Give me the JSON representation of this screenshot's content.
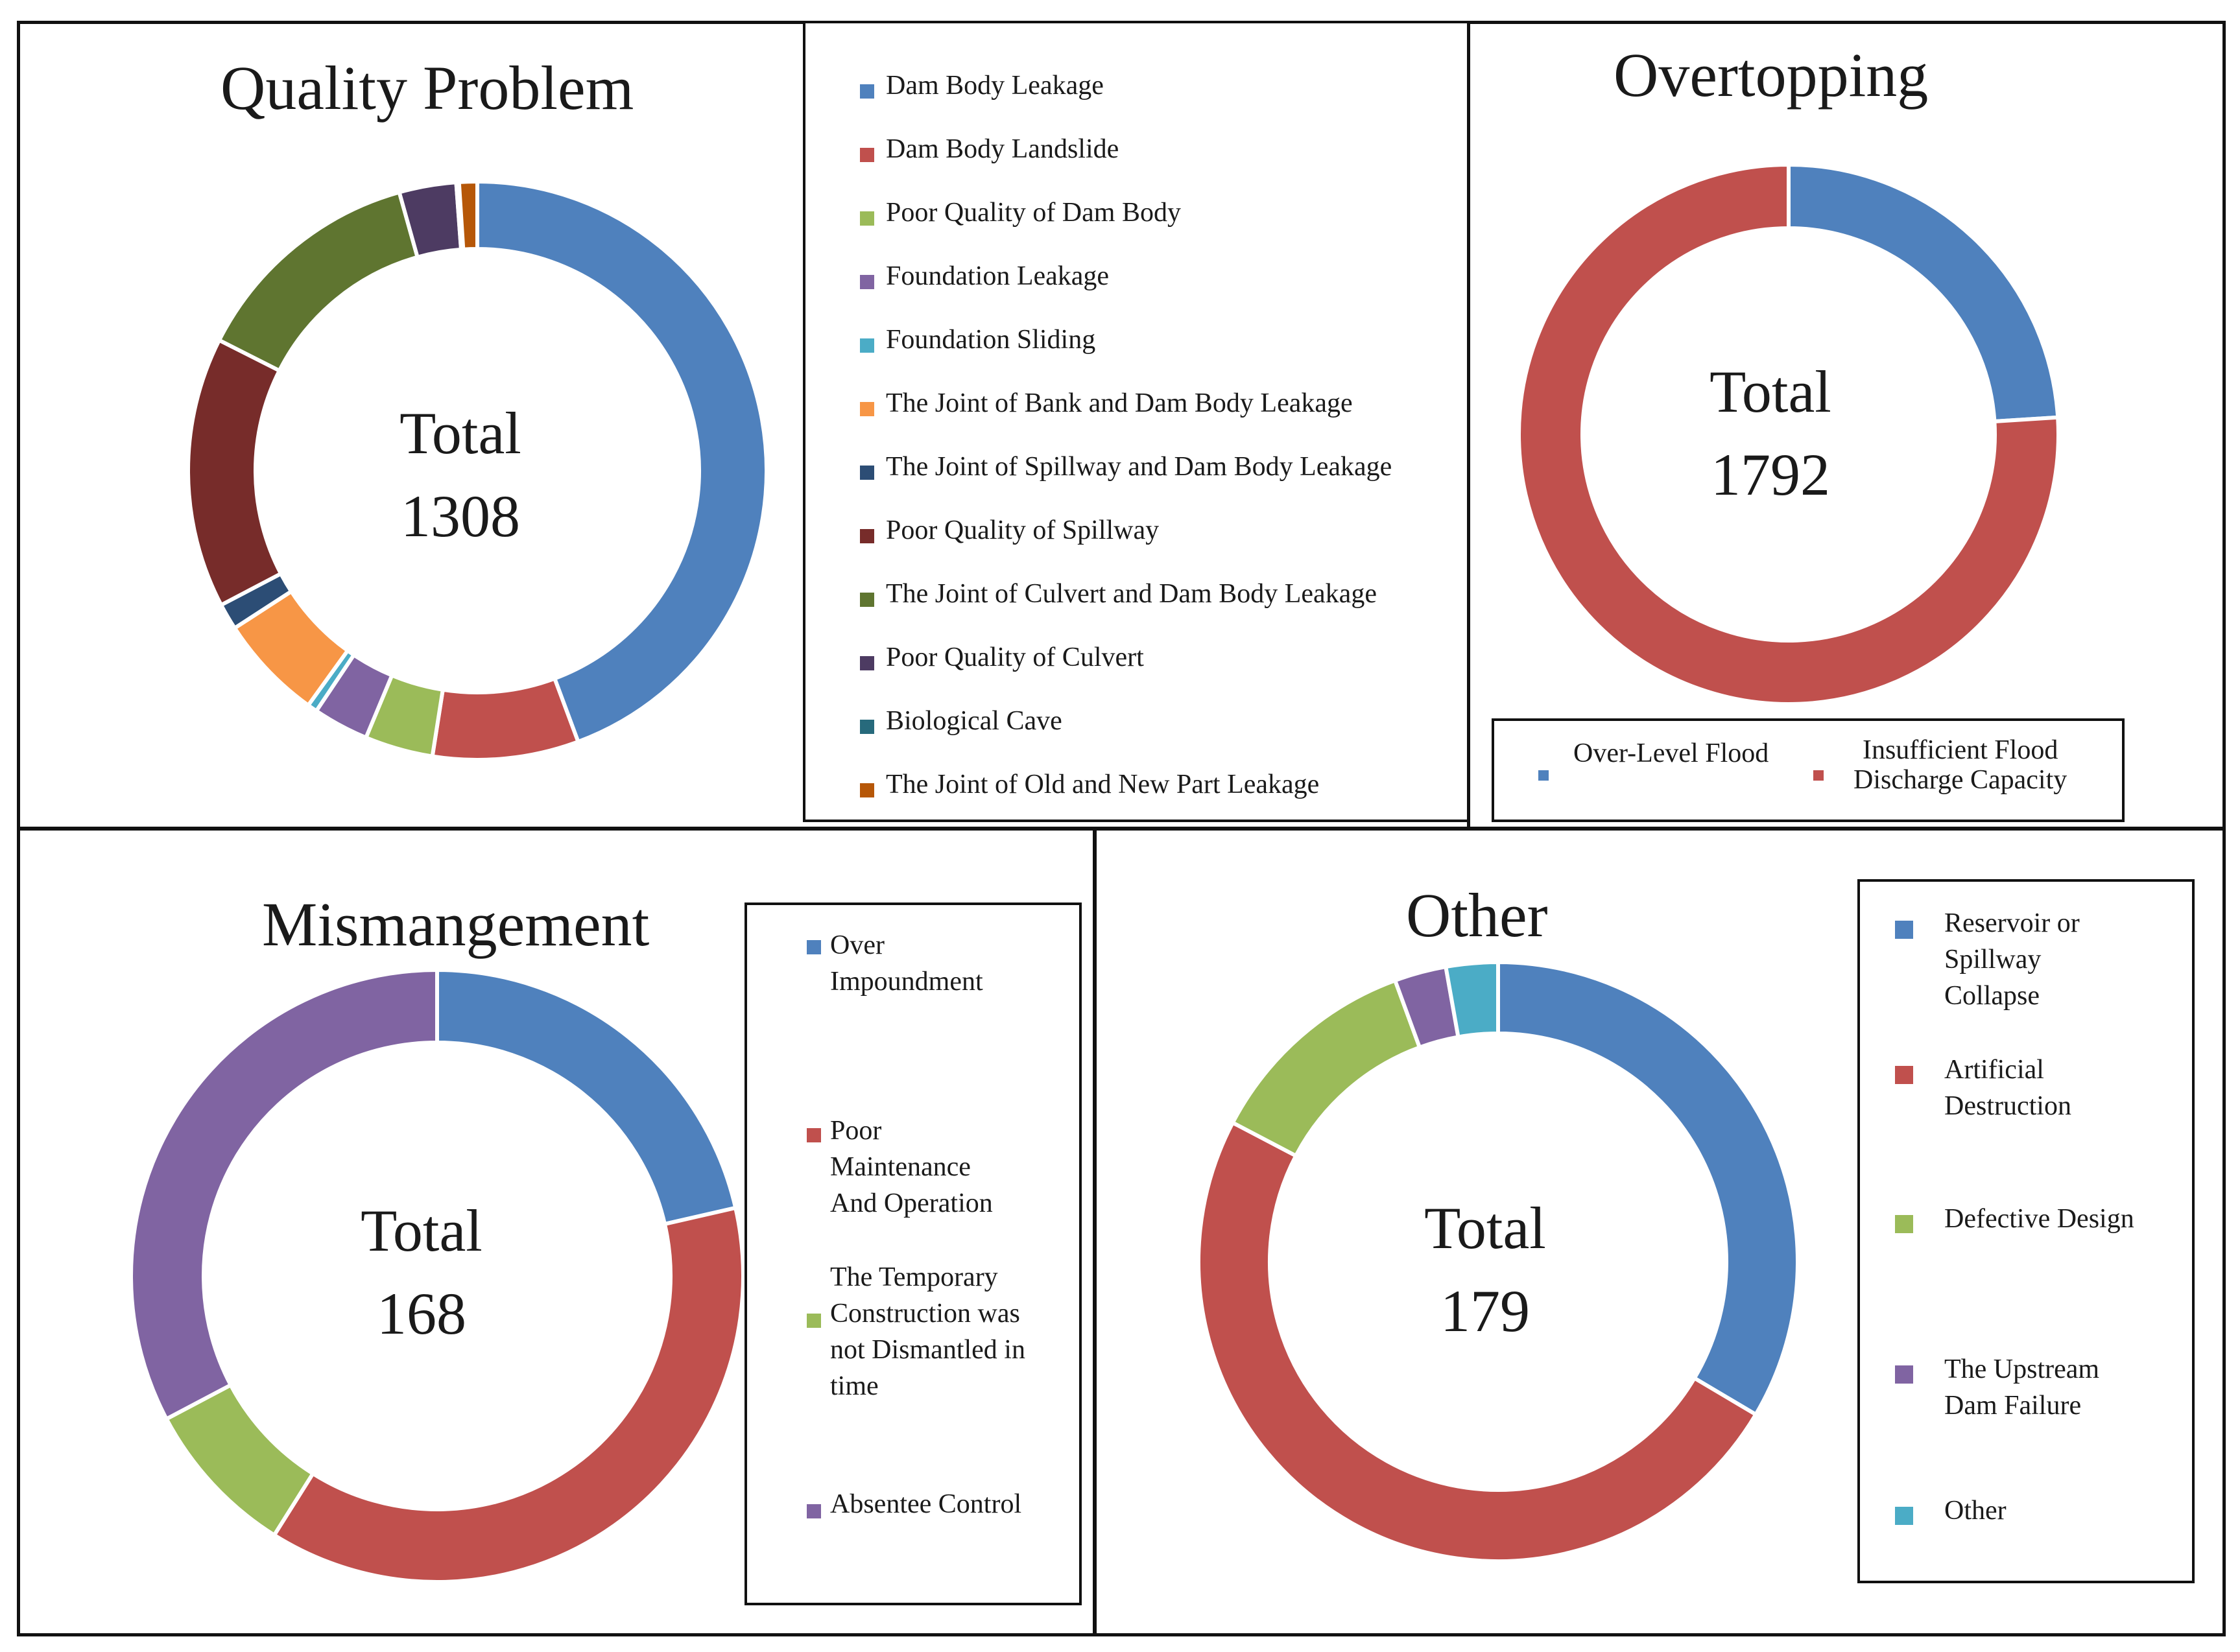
{
  "chart_data": [
    {
      "type": "pie",
      "title": "Quality Problem",
      "center_label": "Total",
      "total": "1308",
      "start_angle_deg": 0,
      "slices": [
        {
          "name": "Dam Body Leakage",
          "value": 571,
          "color": "#4f81bd"
        },
        {
          "name": "Dam Body Landslide",
          "value": 105,
          "color": "#c0504d"
        },
        {
          "name": "Poor Quality of Dam Body",
          "value": 49,
          "color": "#9bbb59"
        },
        {
          "name": "Foundation Leakage",
          "value": 40,
          "color": "#8064a2"
        },
        {
          "name": "Foundation Sliding",
          "value": 7,
          "color": "#4bacc6"
        },
        {
          "name": "The Joint of Bank and Dam Body Leakage",
          "value": 76,
          "color": "#f79646"
        },
        {
          "name": "The Joint of Spillway and Dam Body Leakage",
          "value": 19,
          "color": "#2c4d75"
        },
        {
          "name": "Poor Quality of Spillway",
          "value": 195,
          "color": "#772c2a"
        },
        {
          "name": "The Joint of Culvert and Dam Body Leakage",
          "value": 170,
          "color": "#5f7530"
        },
        {
          "name": "Poor Quality of Culvert",
          "value": 41,
          "color": "#4d3b62"
        },
        {
          "name": "Biological Cave",
          "value": 2,
          "color": "#276a7c"
        },
        {
          "name": "The Joint of Old and New Part Leakage",
          "value": 13,
          "color": "#b65708"
        }
      ]
    },
    {
      "type": "pie",
      "title": "Overtopping",
      "center_label": "Total",
      "total": "1792",
      "start_angle_deg": 0,
      "slices": [
        {
          "name": "Over-Level Flood",
          "value": 430,
          "color": "#4f81bd"
        },
        {
          "name": "Insufficient Flood Discharge Capacity",
          "value": 1362,
          "color": "#c0504d"
        }
      ]
    },
    {
      "type": "pie",
      "title": "Mismangement",
      "center_label": "Total",
      "total": "168",
      "start_angle_deg": 0,
      "slices": [
        {
          "name": "Over Impoundment",
          "value": 36,
          "color": "#4f81bd"
        },
        {
          "name": "Poor Maintenance And Operation",
          "value": 63,
          "color": "#c0504d"
        },
        {
          "name": "The Temporary Construction was not Dismantled in time",
          "value": 14,
          "color": "#9bbb59"
        },
        {
          "name": "Absentee Control",
          "value": 55,
          "color": "#8064a2"
        }
      ]
    },
    {
      "type": "pie",
      "title": "Other",
      "center_label": "Total",
      "total": "179",
      "start_angle_deg": 0,
      "slices": [
        {
          "name": "Reservoir or Spillway Collapse",
          "value": 60,
          "color": "#4f81bd"
        },
        {
          "name": "Artificial Destruction",
          "value": 88,
          "color": "#c0504d"
        },
        {
          "name": "Defective Design",
          "value": 21,
          "color": "#9bbb59"
        },
        {
          "name": "The Upstream Dam Failure",
          "value": 5,
          "color": "#8064a2"
        },
        {
          "name": "Other",
          "value": 5,
          "color": "#4bacc6"
        }
      ]
    }
  ],
  "legends": {
    "quality": [
      "Dam Body Leakage",
      "Dam Body Landslide",
      "Poor Quality of Dam Body",
      "Foundation Leakage",
      "Foundation Sliding",
      "The Joint of Bank and Dam Body Leakage",
      "The Joint of Spillway and Dam Body Leakage",
      "Poor Quality of Spillway",
      "The Joint of Culvert and Dam Body Leakage",
      "Poor Quality of Culvert",
      "Biological Cave",
      "The Joint of Old and New Part Leakage"
    ],
    "overtopping": {
      "over_level": "Over-Level Flood",
      "insufficient_1": "Insufficient Flood",
      "insufficient_2": "Discharge Capacity"
    },
    "mismanagement": {
      "over_1": "Over",
      "over_2": "Impoundment",
      "poor_1": "Poor",
      "poor_2": "Maintenance",
      "poor_3": "And Operation",
      "temp_1": "The Temporary",
      "temp_2": "Construction was",
      "temp_3": "not Dismantled in",
      "temp_4": "time",
      "absentee": "Absentee Control"
    },
    "other": {
      "res_1": "Reservoir or",
      "res_2": "Spillway",
      "res_3": "Collapse",
      "art_1": "Artificial",
      "art_2": "Destruction",
      "def": "Defective Design",
      "up_1": "The Upstream",
      "up_2": "Dam Failure",
      "other": "Other"
    }
  }
}
